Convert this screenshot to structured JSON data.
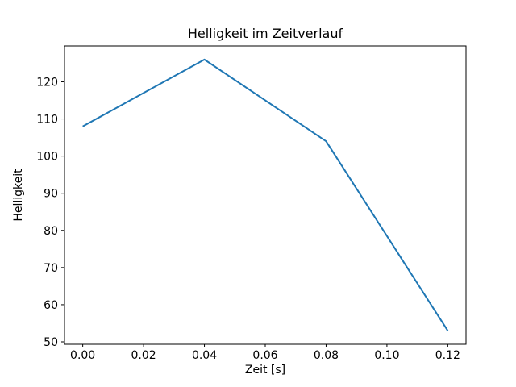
{
  "chart_data": {
    "type": "line",
    "title": "Helligkeit im Zeitverlauf",
    "xlabel": "Zeit [s]",
    "ylabel": "Helligkeit",
    "x": [
      0.0,
      0.04,
      0.08,
      0.12
    ],
    "y": [
      108,
      126,
      104,
      53
    ],
    "xlim": [
      -0.006,
      0.126
    ],
    "ylim": [
      49.35,
      129.65
    ],
    "xticks": [
      0.0,
      0.02,
      0.04,
      0.06,
      0.08,
      0.1,
      0.12
    ],
    "xtick_labels": [
      "0.00",
      "0.02",
      "0.04",
      "0.06",
      "0.08",
      "0.10",
      "0.12"
    ],
    "yticks": [
      50,
      60,
      70,
      80,
      90,
      100,
      110,
      120
    ],
    "ytick_labels": [
      "50",
      "60",
      "70",
      "80",
      "90",
      "100",
      "110",
      "120"
    ],
    "line_color": "#1f77b4",
    "axis_color": "#000000",
    "background_color": "#ffffff",
    "grid": false,
    "legend": false
  }
}
